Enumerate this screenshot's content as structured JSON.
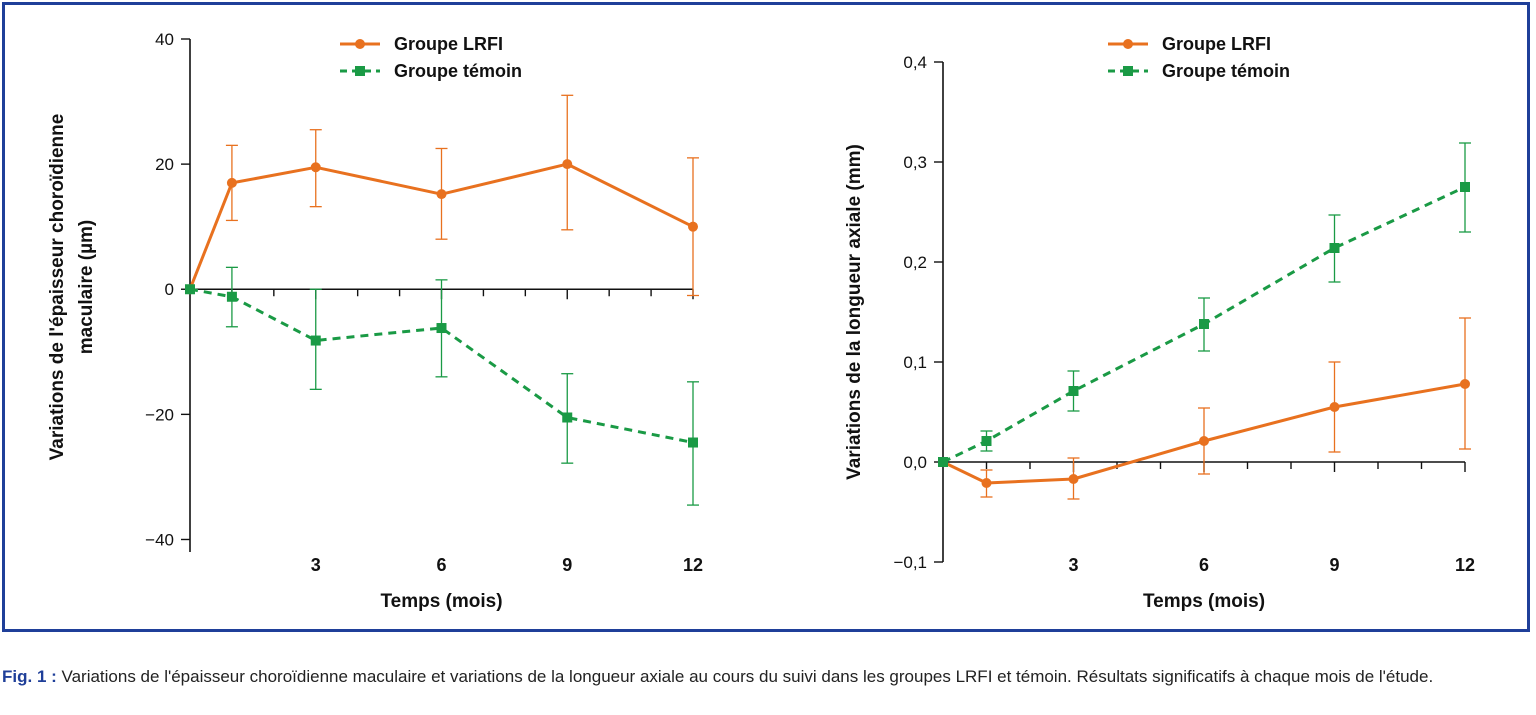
{
  "colors": {
    "frame": "#1f3f99",
    "lrfi": "#e8711f",
    "temoin": "#1a9a45",
    "axis": "#111111"
  },
  "chart_data": [
    {
      "type": "line",
      "x": [
        0,
        1,
        3,
        6,
        9,
        12
      ],
      "xticks": [
        3,
        6,
        9,
        12
      ],
      "xticklabels": [
        "3",
        "6",
        "9",
        "12"
      ],
      "xlim": [
        0,
        12
      ],
      "xlabel": "Temps (mois)",
      "ylabel_lines": [
        "Variations de l'épaisseur choroïdienne",
        "maculaire (µm)"
      ],
      "ylim": [
        -42,
        40
      ],
      "yticks": [
        40,
        20,
        0,
        -20,
        -40
      ],
      "yticklabels": [
        "40",
        "20",
        "0",
        "−20",
        "−40"
      ],
      "legend_position": "top",
      "series": [
        {
          "name": "Groupe LRFI",
          "marker": "circle",
          "style": "solid",
          "values": [
            0,
            17,
            19.5,
            15.2,
            20,
            10
          ],
          "err_high": [
            null,
            23,
            25.5,
            22.5,
            31,
            21
          ],
          "err_low": [
            null,
            11,
            13.2,
            8,
            9.5,
            -1
          ]
        },
        {
          "name": "Groupe témoin",
          "marker": "square",
          "style": "dashed",
          "values": [
            0,
            -1.2,
            -8.2,
            -6.2,
            -20.5,
            -24.5
          ],
          "err_high": [
            null,
            3.5,
            0,
            1.5,
            -13.5,
            -14.8
          ],
          "err_low": [
            null,
            -6,
            -16,
            -14,
            -27.8,
            -34.5
          ]
        }
      ]
    },
    {
      "type": "line",
      "x": [
        0,
        1,
        3,
        6,
        9,
        12
      ],
      "xticks": [
        3,
        6,
        9,
        12
      ],
      "xticklabels": [
        "3",
        "6",
        "9",
        "12"
      ],
      "xlim": [
        0,
        12
      ],
      "xlabel": "Temps (mois)",
      "ylabel_lines": [
        "Variations de la longueur axiale (mm)"
      ],
      "ylim": [
        -0.1,
        0.4
      ],
      "yticks": [
        0.4,
        0.3,
        0.2,
        0.1,
        0.0,
        -0.1
      ],
      "yticklabels": [
        "0,4",
        "0,3",
        "0,2",
        "0,1",
        "0,0",
        "−0,1"
      ],
      "legend_position": "top",
      "series": [
        {
          "name": "Groupe LRFI",
          "marker": "circle",
          "style": "solid",
          "values": [
            0,
            -0.021,
            -0.017,
            0.021,
            0.055,
            0.078
          ],
          "err_high": [
            null,
            -0.008,
            0.004,
            0.054,
            0.1,
            0.144
          ],
          "err_low": [
            null,
            -0.035,
            -0.037,
            -0.012,
            0.01,
            0.013
          ]
        },
        {
          "name": "Groupe témoin",
          "marker": "square",
          "style": "dashed",
          "values": [
            0,
            0.021,
            0.071,
            0.138,
            0.214,
            0.275
          ],
          "err_high": [
            null,
            0.031,
            0.091,
            0.164,
            0.247,
            0.319
          ],
          "err_low": [
            null,
            0.011,
            0.051,
            0.111,
            0.18,
            0.23
          ]
        }
      ]
    }
  ],
  "caption": {
    "lead": "Fig. 1 :",
    "text": " Variations de l'épaisseur choroïdienne maculaire et variations de la longueur axiale au cours du suivi dans les groupes LRFI et témoin. Résultats significatifs à chaque mois de l'étude."
  }
}
